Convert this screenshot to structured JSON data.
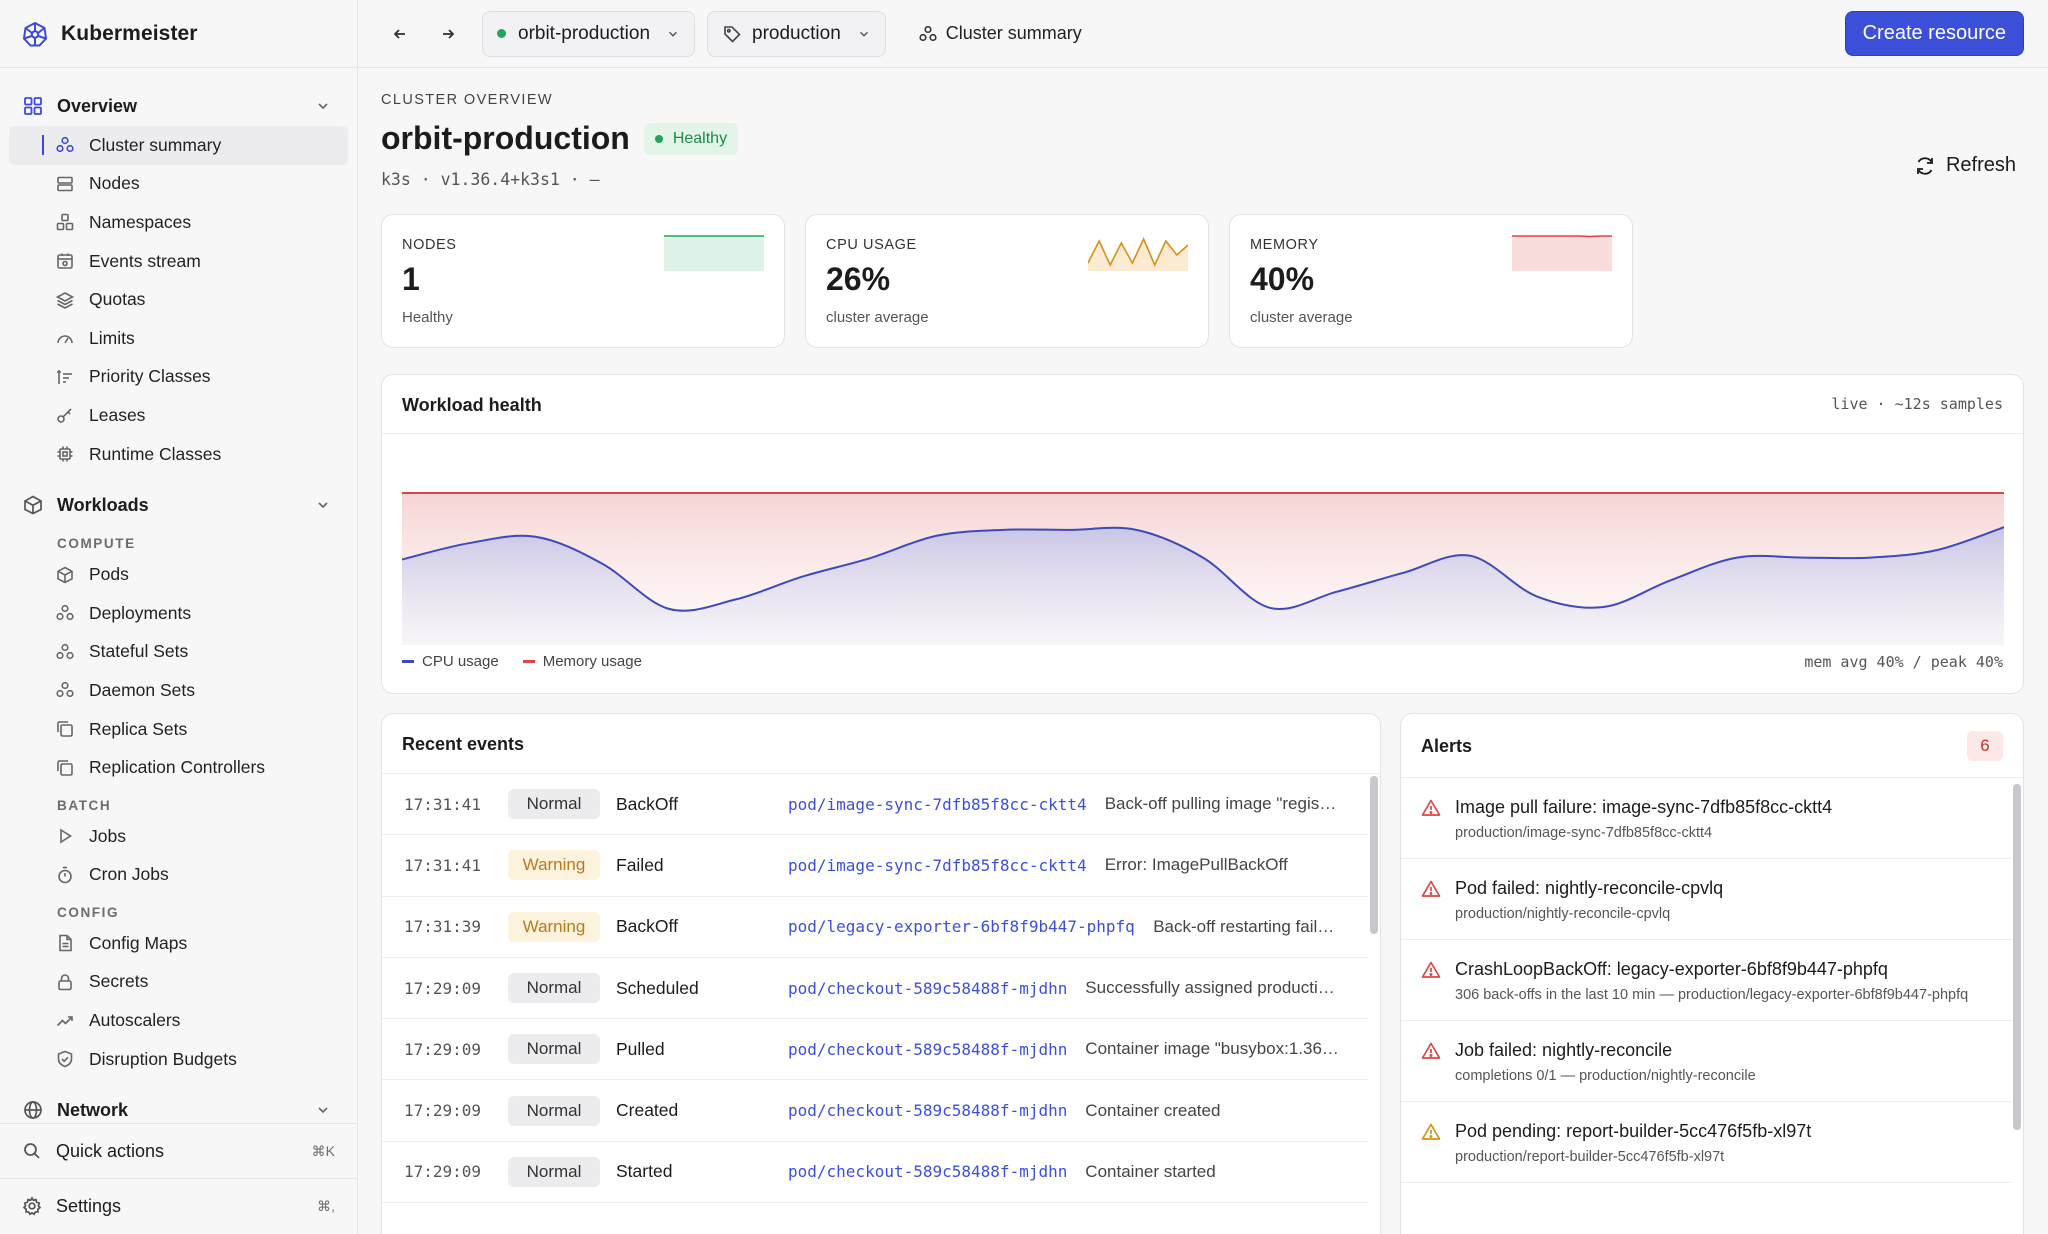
{
  "app": {
    "name": "Kubermeister"
  },
  "topbar": {
    "cluster_select": "orbit-production",
    "namespace_select": "production",
    "breadcrumb": "Cluster summary",
    "create_label": "Create resource"
  },
  "sidebar": {
    "overview": {
      "label": "Overview",
      "items": [
        {
          "label": "Cluster summary",
          "icon": "cluster-icon",
          "active": true
        },
        {
          "label": "Nodes",
          "icon": "server-icon"
        },
        {
          "label": "Namespaces",
          "icon": "namespaces-icon"
        },
        {
          "label": "Events stream",
          "icon": "events-icon"
        },
        {
          "label": "Quotas",
          "icon": "layers-icon"
        },
        {
          "label": "Limits",
          "icon": "gauge-icon"
        },
        {
          "label": "Priority Classes",
          "icon": "priority-icon"
        },
        {
          "label": "Leases",
          "icon": "key-icon"
        },
        {
          "label": "Runtime Classes",
          "icon": "chip-icon"
        }
      ]
    },
    "workloads": {
      "label": "Workloads",
      "sections": [
        {
          "title": "COMPUTE",
          "items": [
            {
              "label": "Pods",
              "icon": "cube-icon"
            },
            {
              "label": "Deployments",
              "icon": "cluster-icon"
            },
            {
              "label": "Stateful Sets",
              "icon": "cluster-icon"
            },
            {
              "label": "Daemon Sets",
              "icon": "cluster-icon"
            },
            {
              "label": "Replica Sets",
              "icon": "copy-icon"
            },
            {
              "label": "Replication Controllers",
              "icon": "copy-icon"
            }
          ]
        },
        {
          "title": "BATCH",
          "items": [
            {
              "label": "Jobs",
              "icon": "play-icon"
            },
            {
              "label": "Cron Jobs",
              "icon": "timer-icon"
            }
          ]
        },
        {
          "title": "CONFIG",
          "items": [
            {
              "label": "Config Maps",
              "icon": "document-icon"
            },
            {
              "label": "Secrets",
              "icon": "lock-icon"
            },
            {
              "label": "Autoscalers",
              "icon": "trend-icon"
            },
            {
              "label": "Disruption Budgets",
              "icon": "shield-icon"
            }
          ]
        }
      ]
    },
    "network": {
      "label": "Network"
    },
    "footer": {
      "quick_actions": "Quick actions",
      "quick_actions_kbd": "⌘K",
      "settings": "Settings",
      "settings_kbd": "⌘,"
    }
  },
  "overview": {
    "overline": "CLUSTER OVERVIEW",
    "title": "orbit-production",
    "status": "Healthy",
    "version": "k3s · v1.36.4+k3s1 · —",
    "refresh_label": "Refresh"
  },
  "stats": [
    {
      "label": "NODES",
      "value": "1",
      "sub": "Healthy",
      "color": "#22a55a",
      "fill": "#dff3e8",
      "spark": [
        1,
        1,
        1,
        1,
        1,
        1,
        1,
        1,
        1,
        1
      ]
    },
    {
      "label": "CPU USAGE",
      "value": "26%",
      "sub": "cluster average",
      "color": "#d69016",
      "fill": "#fbebd3",
      "spark": [
        20,
        31,
        19,
        30,
        20,
        32,
        19,
        31,
        24,
        29
      ]
    },
    {
      "label": "MEMORY",
      "value": "40%",
      "sub": "cluster average",
      "color": "#d94848",
      "fill": "#f9dcdc",
      "spark": [
        40,
        40,
        40,
        40,
        40,
        40,
        40,
        39.8,
        40,
        40
      ]
    }
  ],
  "workload": {
    "title": "Workload health",
    "meta": "live · ~12s samples",
    "legend_cpu": "CPU usage",
    "legend_mem": "Memory usage",
    "footer": "mem avg 40% / peak 40%"
  },
  "chart_data": {
    "type": "area",
    "ylim": [
      0,
      50
    ],
    "grid": false,
    "series": [
      {
        "name": "CPU usage",
        "color": "#3d4ab8",
        "values": [
          22.5,
          26.8,
          28.5,
          21.4,
          9.5,
          12.0,
          18.0,
          22.8,
          28.7,
          30.3,
          30.3,
          30.3,
          23.0,
          9.8,
          14.0,
          19.0,
          23.5,
          12.8,
          10.0,
          17.0,
          23.0,
          23.0,
          23.0,
          25.0,
          31.0
        ]
      },
      {
        "name": "Memory usage",
        "color": "#d94848",
        "values": [
          40,
          40,
          40,
          40,
          40,
          40,
          40,
          40,
          40,
          40,
          40,
          40,
          40,
          40,
          40,
          40,
          40,
          40,
          40,
          40,
          40,
          40,
          40,
          40,
          40
        ]
      }
    ]
  },
  "events": {
    "title": "Recent events",
    "rows": [
      {
        "time": "17:31:41",
        "type": "Normal",
        "reason": "BackOff",
        "object": "pod/image-sync-7dfb85f8cc-cktt4",
        "message": "Back-off pulling image \"regis…"
      },
      {
        "time": "17:31:41",
        "type": "Warning",
        "reason": "Failed",
        "object": "pod/image-sync-7dfb85f8cc-cktt4",
        "message": "Error: ImagePullBackOff"
      },
      {
        "time": "17:31:39",
        "type": "Warning",
        "reason": "BackOff",
        "object": "pod/legacy-exporter-6bf8f9b447-phpfq",
        "message": "Back-off restarting fail…"
      },
      {
        "time": "17:29:09",
        "type": "Normal",
        "reason": "Scheduled",
        "object": "pod/checkout-589c58488f-mjdhn",
        "message": "Successfully assigned producti…"
      },
      {
        "time": "17:29:09",
        "type": "Normal",
        "reason": "Pulled",
        "object": "pod/checkout-589c58488f-mjdhn",
        "message": "Container image \"busybox:1.36\"…"
      },
      {
        "time": "17:29:09",
        "type": "Normal",
        "reason": "Created",
        "object": "pod/checkout-589c58488f-mjdhn",
        "message": "Container created"
      },
      {
        "time": "17:29:09",
        "type": "Normal",
        "reason": "Started",
        "object": "pod/checkout-589c58488f-mjdhn",
        "message": "Container started"
      }
    ]
  },
  "alerts": {
    "title": "Alerts",
    "count": "6",
    "items": [
      {
        "severity": "error",
        "title": "Image pull failure: image-sync-7dfb85f8cc-cktt4",
        "detail": "production/image-sync-7dfb85f8cc-cktt4"
      },
      {
        "severity": "error",
        "title": "Pod failed: nightly-reconcile-cpvlq",
        "detail": "production/nightly-reconcile-cpvlq"
      },
      {
        "severity": "error",
        "title": "CrashLoopBackOff: legacy-exporter-6bf8f9b447-phpfq",
        "detail": "306 back-offs in the last 10 min — production/legacy-exporter-6bf8f9b447-phpfq"
      },
      {
        "severity": "error",
        "title": "Job failed: nightly-reconcile",
        "detail": "completions 0/1 — production/nightly-reconcile"
      },
      {
        "severity": "warning",
        "title": "Pod pending: report-builder-5cc476f5fb-xl97t",
        "detail": "production/report-builder-5cc476f5fb-xl97t"
      }
    ]
  }
}
